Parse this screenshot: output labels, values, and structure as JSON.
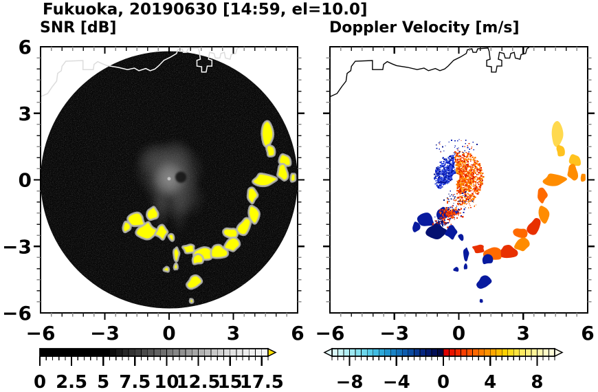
{
  "figure": {
    "title": "Fukuoka, 20190630 [14:59, el=10.0]",
    "background": "#ffffff"
  },
  "panels": {
    "snr": {
      "title": "SNR [dB]"
    },
    "velocity": {
      "title": "Doppler Velocity [m/s]"
    }
  },
  "chart_data": {
    "type": "heatmap",
    "description": "Two radar PPI panels: left SNR [dB] grayscale disk with high-SNR yellow echoes; right Doppler velocity [m/s] colored echoes on white with coastline.",
    "axes": {
      "x_range": [
        -6,
        6
      ],
      "y_range": [
        -6,
        6
      ],
      "major_ticks": [
        -6,
        -3,
        0,
        3,
        6
      ],
      "x_tick_labels": [
        "−6",
        "−3",
        "0",
        "3",
        "6"
      ],
      "y_tick_labels": [
        "6",
        "3",
        "0",
        "−3",
        "−6"
      ],
      "minor_tick_step": 0.5,
      "grid": false
    },
    "panel_list": [
      {
        "id": "snr",
        "type": "heatmap",
        "title": "SNR [dB]",
        "scan_disk": {
          "cx": 0,
          "cy": 0,
          "radius": 6,
          "color": "#060606"
        },
        "colorbar": {
          "min": 0,
          "max": 18,
          "tick_values": [
            0,
            2.5,
            5,
            7.5,
            10,
            12.5,
            15,
            17.5
          ],
          "tick_labels": [
            "0",
            "2.5",
            "5",
            "7.5",
            "10",
            "12.5",
            "15",
            "17.5"
          ],
          "minor_step": 0.5,
          "over_arrow_color": "#ffe000",
          "cell_colors": [
            "#000000",
            "#000000",
            "#000000",
            "#000000",
            "#000000",
            "#000000",
            "#000000",
            "#000000",
            "#000000",
            "#000000",
            "#000000",
            "#0e0e0e",
            "#1b1b1b",
            "#272727",
            "#333333",
            "#3f3f3f",
            "#4b4b4b",
            "#575757",
            "#636363",
            "#6f6f6f",
            "#7b7b7b",
            "#868686",
            "#919191",
            "#9c9c9c",
            "#a7a7a7",
            "#b2b2b2",
            "#bdbdbd",
            "#c7c7c7",
            "#d1d1d1",
            "#dbdbdb",
            "#e1e1e1",
            "#e7e7e7",
            "#ececec",
            "#f0f0f0",
            "#f3f3f3",
            "#f6f6f6"
          ]
        },
        "center_echo_ellipses": [
          {
            "x": 0,
            "y": 0.45,
            "rx": 1.05,
            "ry": 0.85,
            "c": "#8a8a8a",
            "o": 0.5
          },
          {
            "x": 0.15,
            "y": -0.35,
            "rx": 0.8,
            "ry": 0.95,
            "c": "#828282",
            "o": 0.45
          },
          {
            "x": 0,
            "y": 0.05,
            "rx": 0.5,
            "ry": 0.52,
            "c": "#9c9c9c",
            "o": 0.75
          },
          {
            "x": -0.4,
            "y": -1.25,
            "rx": 0.26,
            "ry": 0.7,
            "c": "#6a6a6a",
            "o": 0.32
          },
          {
            "x": 0.5,
            "y": -1.2,
            "rx": 0.3,
            "ry": 0.8,
            "c": "#6a6a6a",
            "o": 0.3
          },
          {
            "x": 0.95,
            "y": -0.85,
            "rx": 0.5,
            "ry": 0.55,
            "c": "#606060",
            "o": 0.3
          },
          {
            "x": -0.7,
            "y": 0.95,
            "rx": 0.55,
            "ry": 0.5,
            "c": "#6e6e6e",
            "o": 0.35
          },
          {
            "x": 0.35,
            "y": 1.05,
            "rx": 0.5,
            "ry": 0.55,
            "c": "#6e6e6e",
            "o": 0.3
          }
        ],
        "center_ring": {
          "x": 0.55,
          "y": 0.12,
          "r": 0.26,
          "c": "#141414",
          "o": 0.9
        },
        "center_dot": {
          "x": 0,
          "y": 0.05,
          "r": 0.08,
          "c": "#c9c9c9"
        },
        "high_snr_color": "#ffff00",
        "halo_color": "#b6b6b6",
        "coast_inside_color": "#ffffff",
        "coast_outside_color": "#dcdcdc"
      },
      {
        "id": "velocity",
        "type": "scatter",
        "title": "Doppler Velocity [m/s]",
        "colorbar": {
          "min": -9.5,
          "max": 9.5,
          "tick_values": [
            -8,
            -4,
            0,
            4,
            8
          ],
          "tick_labels": [
            "−8",
            "−4",
            "0",
            "4",
            "8"
          ],
          "minor_step": 0.5,
          "under_arrow_color": "#e4fbfb",
          "over_arrow_color": "#fffde8",
          "cell_colors": [
            "#d8f7f7",
            "#c6f3f5",
            "#b2eef3",
            "#9ce7f1",
            "#84dfee",
            "#6cd5ea",
            "#54c9e6",
            "#40bbe1",
            "#2fa9d9",
            "#2296cf",
            "#1a83c5",
            "#1370b9",
            "#0e5cad",
            "#0a4aa0",
            "#073790",
            "#05257f",
            "#03186b",
            "#020e57",
            "#010843",
            "#dd0000",
            "#e91400",
            "#f32900",
            "#fa3e00",
            "#ff5300",
            "#ff6800",
            "#ff7d00",
            "#ff9200",
            "#ffa700",
            "#ffbc00",
            "#ffd100",
            "#ffdd1e",
            "#ffe540",
            "#ffeb60",
            "#fff07e",
            "#fff498",
            "#fff7b0",
            "#fffac6",
            "#fffcd8"
          ]
        },
        "coast_color": "#000000",
        "hole": {
          "x": -0.14,
          "y": 0.11,
          "r": 0.17,
          "color": "#ffffff"
        }
      }
    ],
    "coastline_xy": [
      [
        -6,
        3.75
      ],
      [
        -5.67,
        3.89
      ],
      [
        -5.45,
        4.2
      ],
      [
        -5.25,
        4.45
      ],
      [
        -5.2,
        4.8
      ],
      [
        -5.03,
        4.92
      ],
      [
        -5.0,
        5.12
      ],
      [
        -4.82,
        5.35
      ],
      [
        -4.02,
        5.38
      ],
      [
        -4.02,
        4.97
      ],
      [
        -3.54,
        4.97
      ],
      [
        -3.5,
        5.21
      ],
      [
        -3.33,
        5.33
      ],
      [
        -3.11,
        5.23
      ],
      [
        -2.9,
        5.15
      ],
      [
        -2.37,
        5.07
      ],
      [
        -1.94,
        4.97
      ],
      [
        -1.62,
        5.04
      ],
      [
        -1.41,
        4.92
      ],
      [
        -1.09,
        5.02
      ],
      [
        -0.88,
        4.92
      ],
      [
        -0.66,
        5.0
      ],
      [
        -0.5,
        5.13
      ],
      [
        -0.24,
        5.39
      ],
      [
        0.08,
        5.54
      ],
      [
        0.35,
        5.7
      ],
      [
        0.4,
        5.86
      ],
      [
        0.61,
        5.91
      ],
      [
        0.66,
        5.75
      ],
      [
        0.82,
        5.75
      ],
      [
        0.88,
        5.91
      ],
      [
        1.36,
        5.94
      ],
      [
        1.41,
        5.8
      ],
      [
        1.46,
        5.44
      ],
      [
        1.3,
        5.39
      ],
      [
        1.3,
        5.13
      ],
      [
        1.52,
        5.1
      ],
      [
        1.52,
        4.86
      ],
      [
        1.73,
        4.86
      ],
      [
        1.78,
        5.13
      ],
      [
        2.0,
        5.13
      ],
      [
        2.0,
        5.39
      ],
      [
        1.84,
        5.44
      ],
      [
        1.89,
        5.75
      ],
      [
        2.1,
        5.7
      ],
      [
        2.16,
        5.49
      ],
      [
        2.37,
        5.49
      ],
      [
        2.42,
        5.7
      ],
      [
        2.58,
        5.75
      ],
      [
        2.63,
        5.49
      ],
      [
        2.85,
        5.44
      ],
      [
        2.9,
        5.65
      ],
      [
        3.11,
        5.7
      ],
      [
        3.17,
        5.91
      ],
      [
        3.45,
        6.1
      ]
    ],
    "echo_blobs": [
      {
        "x": 4.55,
        "y": 2.0,
        "rx": 0.26,
        "ry": 0.52,
        "seed": 11,
        "rc": "#ffd94e"
      },
      {
        "x": 4.72,
        "y": 1.32,
        "rx": 0.2,
        "ry": 0.26,
        "seed": 12,
        "rc": "#ffc21e"
      },
      {
        "x": 5.42,
        "y": 0.88,
        "rx": 0.27,
        "ry": 0.3,
        "seed": 13,
        "rc": "#ffc21e"
      },
      {
        "x": 5.32,
        "y": 0.3,
        "rx": 0.3,
        "ry": 0.34,
        "seed": 14,
        "rc": "#ff8c00"
      },
      {
        "x": 4.45,
        "y": 0.05,
        "rx": 0.5,
        "ry": 0.28,
        "seed": 15,
        "rc": "#ff8c00"
      },
      {
        "x": 5.78,
        "y": 0.12,
        "rx": 0.14,
        "ry": 0.2,
        "seed": 26,
        "rc": "#ff8c00"
      },
      {
        "x": 3.85,
        "y": -0.72,
        "rx": 0.28,
        "ry": 0.34,
        "seed": 16,
        "rc": "#ff6a00"
      },
      {
        "x": 3.95,
        "y": -1.5,
        "rx": 0.3,
        "ry": 0.42,
        "seed": 17,
        "rc": "#ff8c00"
      },
      {
        "x": 3.5,
        "y": -2.12,
        "rx": 0.34,
        "ry": 0.36,
        "seed": 18,
        "rc": "#e83000"
      },
      {
        "x": 2.82,
        "y": -2.4,
        "rx": 0.3,
        "ry": 0.26,
        "seed": 19,
        "rc": "#ff6a00"
      },
      {
        "x": 2.95,
        "y": -2.95,
        "rx": 0.32,
        "ry": 0.3,
        "seed": 20,
        "rc": "#ff8c00"
      },
      {
        "x": 2.3,
        "y": -3.2,
        "rx": 0.46,
        "ry": 0.3,
        "seed": 21,
        "rc": "#e83000"
      },
      {
        "x": 1.6,
        "y": -3.35,
        "rx": 0.42,
        "ry": 0.28,
        "seed": 22,
        "rc": "#ff6a00"
      },
      {
        "x": 0.95,
        "y": -3.1,
        "rx": 0.3,
        "ry": 0.2,
        "seed": 23,
        "rc": "#e83000"
      },
      {
        "x": 1.3,
        "y": -3.6,
        "rx": 0.26,
        "ry": 0.22,
        "seed": 24,
        "rc": "#081a9e"
      },
      {
        "x": 1.2,
        "y": -4.6,
        "rx": 0.36,
        "ry": 0.3,
        "seed": 25,
        "rc": "#081a9e"
      },
      {
        "x": 1.05,
        "y": -5.45,
        "rx": 0.1,
        "ry": 0.08,
        "seed": 27,
        "rc": "#081a9e"
      },
      {
        "x": 0.35,
        "y": -3.3,
        "rx": 0.12,
        "ry": 0.3,
        "seed": 28,
        "rc": "#081a9e"
      },
      {
        "x": 0.3,
        "y": -3.92,
        "rx": 0.1,
        "ry": 0.16,
        "seed": 29,
        "rc": "#081a9e"
      },
      {
        "x": -0.75,
        "y": -1.5,
        "rx": 0.3,
        "ry": 0.36,
        "seed": 30,
        "rc": "#081a9e"
      },
      {
        "x": -1.5,
        "y": -1.82,
        "rx": 0.42,
        "ry": 0.3,
        "seed": 31,
        "rc": "#081a9e"
      },
      {
        "x": -1.05,
        "y": -2.28,
        "rx": 0.46,
        "ry": 0.36,
        "seed": 32,
        "rc": "#041070"
      },
      {
        "x": -0.35,
        "y": -2.35,
        "rx": 0.3,
        "ry": 0.3,
        "seed": 33,
        "rc": "#081a9e"
      },
      {
        "x": -1.95,
        "y": -2.1,
        "rx": 0.2,
        "ry": 0.26,
        "seed": 34,
        "rc": "#081a9e"
      },
      {
        "x": 0.12,
        "y": -2.6,
        "rx": 0.15,
        "ry": 0.2,
        "seed": 35,
        "rc": "#081a9e"
      },
      {
        "x": -0.15,
        "y": -4.05,
        "rx": 0.12,
        "ry": 0.12,
        "seed": 36,
        "rc": "#081a9e"
      }
    ],
    "speckle_fans": [
      {
        "name": "blue-fan",
        "cx": -0.14,
        "cy": 0.11,
        "a0": 95,
        "a1": 215,
        "r0": 0.14,
        "r1": 1.0,
        "n": 520,
        "smin": 1.2,
        "smax": 2.4,
        "seed": 101,
        "colors": [
          "#1c2fd4",
          "#0a1db4",
          "#2a4ae2",
          "#021191",
          "#3a55e8"
        ]
      },
      {
        "name": "warm-fan",
        "cx": -0.1,
        "cy": 0.11,
        "a0": -88,
        "a1": 95,
        "r0": 0.14,
        "r1": 1.25,
        "n": 860,
        "smin": 1.2,
        "smax": 2.6,
        "seed": 102,
        "colors": [
          "#ff4a00",
          "#ff6c00",
          "#e82600",
          "#ff8e00",
          "#ffad1c",
          "#d61c00",
          "#ff7c00"
        ]
      },
      {
        "name": "navy-outliers",
        "cx": -0.1,
        "cy": 0.2,
        "a0": 55,
        "a1": 130,
        "r0": 0.9,
        "r1": 1.7,
        "n": 48,
        "smin": 1.0,
        "smax": 1.9,
        "seed": 103,
        "colors": [
          "#0a1db4",
          "#0a1db4",
          "#071690",
          "#e83000"
        ]
      },
      {
        "name": "lower-scatter",
        "cx": 0,
        "cy": 0.1,
        "a0": 235,
        "a1": 305,
        "r0": 0.7,
        "r1": 1.55,
        "n": 85,
        "smin": 1.0,
        "smax": 2.1,
        "seed": 104,
        "colors": [
          "#e83000",
          "#0a1db4",
          "#ff6c00",
          "#041070"
        ]
      }
    ],
    "box_clusters": [
      {
        "name": "red-over-navy",
        "cx": -0.35,
        "cy": -1.5,
        "w": 1.15,
        "h": 0.6,
        "n": 160,
        "smin": 1.2,
        "smax": 2.5,
        "seed": 105,
        "colors": [
          "#e83000",
          "#ff5200",
          "#c01600",
          "#0a1db4",
          "#e83000"
        ]
      },
      {
        "name": "navy-mix",
        "cx": -0.8,
        "cy": -1.9,
        "w": 1.0,
        "h": 0.5,
        "n": 70,
        "smin": 1.2,
        "smax": 2.2,
        "seed": 106,
        "colors": [
          "#081a9e",
          "#041070",
          "#e83000"
        ]
      }
    ]
  }
}
